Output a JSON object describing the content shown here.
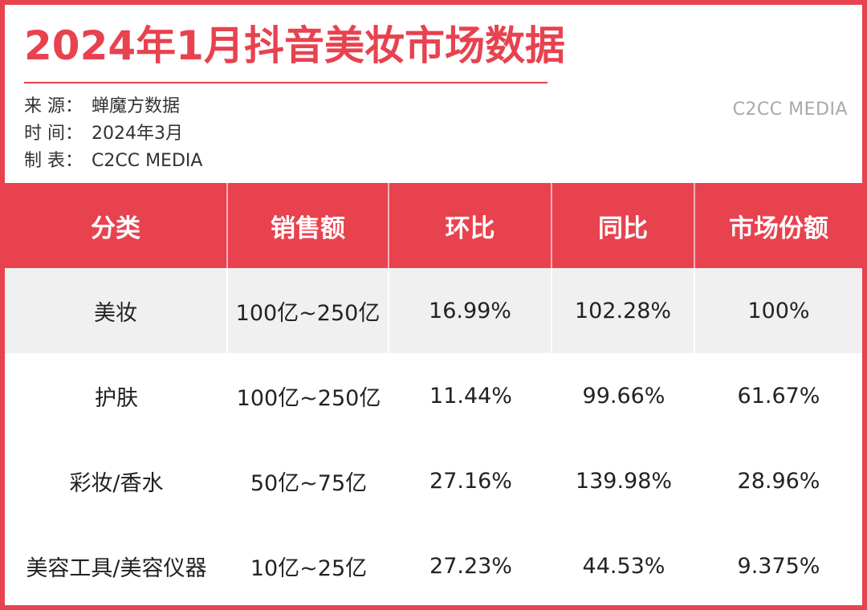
{
  "title": "2024年1月抖音美妆市场数据",
  "meta": {
    "source_label": "来  源：",
    "source_value": "蝉魔方数据",
    "time_label": "时  间：",
    "time_value": "2024年3月",
    "maker_label": "制  表：",
    "maker_value": "C2CC  MEDIA"
  },
  "brand": "C2CC MEDIA",
  "colors": {
    "accent": "#e8424f",
    "row_shade": "#f0f0f0",
    "brand_gray": "#a9a9a9"
  },
  "chart_data": {
    "type": "table",
    "title": "2024年1月抖音美妆市场数据",
    "columns": [
      "分类",
      "销售额",
      "环比",
      "同比",
      "市场份额"
    ],
    "rows": [
      [
        "美妆",
        "100亿~250亿",
        "16.99%",
        "102.28%",
        "100%"
      ],
      [
        "护肤",
        "100亿~250亿",
        "11.44%",
        "99.66%",
        "61.67%"
      ],
      [
        "彩妆/香水",
        "50亿~75亿",
        "27.16%",
        "139.98%",
        "28.96%"
      ],
      [
        "美容工具/美容仪器",
        "10亿~25亿",
        "27.23%",
        "44.53%",
        "9.375%"
      ]
    ],
    "shaded_rows": [
      0
    ]
  }
}
